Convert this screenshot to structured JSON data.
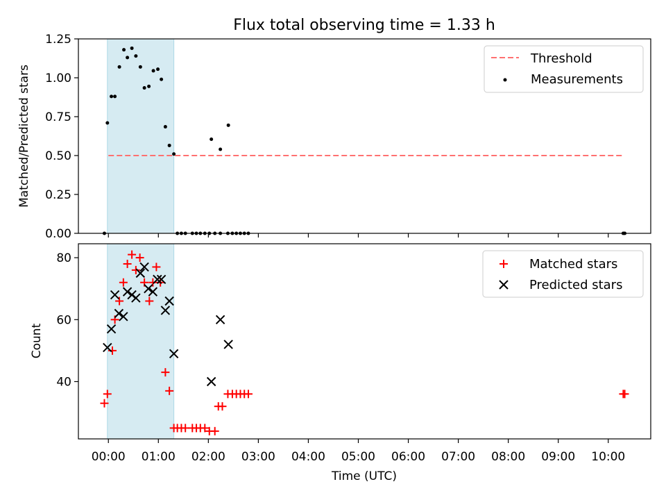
{
  "title": "Flux total observing time = 1.33 h",
  "xlabel": "Time (UTC)",
  "x_tick_labels": [
    "00:00",
    "01:00",
    "02:00",
    "03:00",
    "04:00",
    "05:00",
    "06:00",
    "07:00",
    "08:00",
    "09:00",
    "10:00"
  ],
  "x_tick_hours": [
    0,
    1,
    2,
    3,
    4,
    5,
    6,
    7,
    8,
    9,
    10
  ],
  "xlim_hours": [
    -0.6,
    10.85
  ],
  "shaded_interval_hours": [
    -0.02,
    1.31
  ],
  "colors": {
    "shade": "#add8e6",
    "threshold": "#ff7070",
    "matched": "#ff0000",
    "predicted": "#000000",
    "measurement": "#000000"
  },
  "chart_data": [
    {
      "type": "scatter",
      "ylabel": "Matched/Predicted stars",
      "ylim": [
        0,
        1.25
      ],
      "y_ticks": [
        0,
        0.25,
        0.5,
        0.75,
        1.0,
        1.25
      ],
      "y_tick_labels": [
        "0.00",
        "0.25",
        "0.50",
        "0.75",
        "1.00",
        "1.25"
      ],
      "legend": {
        "position": "top-right",
        "entries": [
          "Threshold",
          "Measurements"
        ]
      },
      "threshold": {
        "name": "Threshold",
        "y": 0.5,
        "x": [
          0,
          10.3
        ]
      },
      "series": [
        {
          "name": "Measurements",
          "x": [
            -0.08,
            -0.02,
            0.06,
            0.13,
            0.22,
            0.31,
            0.38,
            0.47,
            0.55,
            0.64,
            0.72,
            0.81,
            0.9,
            0.99,
            1.06,
            1.14,
            1.22,
            1.31,
            1.38,
            1.46,
            1.54,
            1.68,
            1.76,
            1.84,
            1.93,
            2.02,
            2.13,
            2.24,
            2.39,
            2.48,
            2.56,
            2.64,
            2.72,
            2.8,
            2.06,
            2.24,
            2.4,
            10.3,
            10.33
          ],
          "y": [
            0,
            0.71,
            0.88,
            0.88,
            1.07,
            1.18,
            1.13,
            1.19,
            1.14,
            1.07,
            0.935,
            0.945,
            1.045,
            1.055,
            0.99,
            0.685,
            0.565,
            0.51,
            0,
            0,
            0,
            0,
            0,
            0,
            0,
            0,
            0,
            0,
            0,
            0,
            0,
            0,
            0,
            0,
            0.605,
            0.54,
            0.695,
            0,
            0
          ]
        }
      ]
    },
    {
      "type": "scatter",
      "ylabel": "Count",
      "ylim": [
        21.5,
        84.5
      ],
      "y_ticks": [
        40,
        60,
        80
      ],
      "y_tick_labels": [
        "40",
        "60",
        "80"
      ],
      "legend": {
        "position": "top-right",
        "entries": [
          "Matched stars",
          "Predicted stars"
        ]
      },
      "series": [
        {
          "name": "Matched stars",
          "x": [
            -0.08,
            -0.02,
            0.08,
            0.13,
            0.22,
            0.3,
            0.38,
            0.47,
            0.55,
            0.63,
            0.72,
            0.82,
            0.89,
            0.96,
            1.04,
            1.14,
            1.22,
            1.31,
            1.38,
            1.46,
            1.54,
            1.68,
            1.76,
            1.84,
            1.93,
            2.02,
            2.13,
            2.2,
            2.28,
            2.39,
            2.48,
            2.56,
            2.64,
            2.72,
            2.8,
            10.3,
            10.33
          ],
          "y": [
            33,
            36,
            50,
            60,
            66,
            72,
            78,
            81,
            76,
            80,
            72,
            66,
            72,
            77,
            72,
            43,
            37,
            25,
            25,
            25,
            25,
            25,
            25,
            25,
            25,
            24,
            24,
            32,
            32,
            36,
            36,
            36,
            36,
            36,
            36,
            36,
            36
          ]
        },
        {
          "name": "Predicted stars",
          "x": [
            -0.02,
            0.06,
            0.13,
            0.21,
            0.3,
            0.38,
            0.47,
            0.55,
            0.64,
            0.72,
            0.8,
            0.89,
            0.98,
            1.06,
            1.14,
            1.22,
            1.31,
            2.06,
            2.24,
            2.4
          ],
          "y": [
            51,
            57,
            68,
            62,
            61,
            69,
            68,
            67,
            75,
            77,
            70,
            69,
            73,
            73,
            63,
            66,
            49,
            40,
            60,
            52
          ]
        }
      ]
    }
  ]
}
